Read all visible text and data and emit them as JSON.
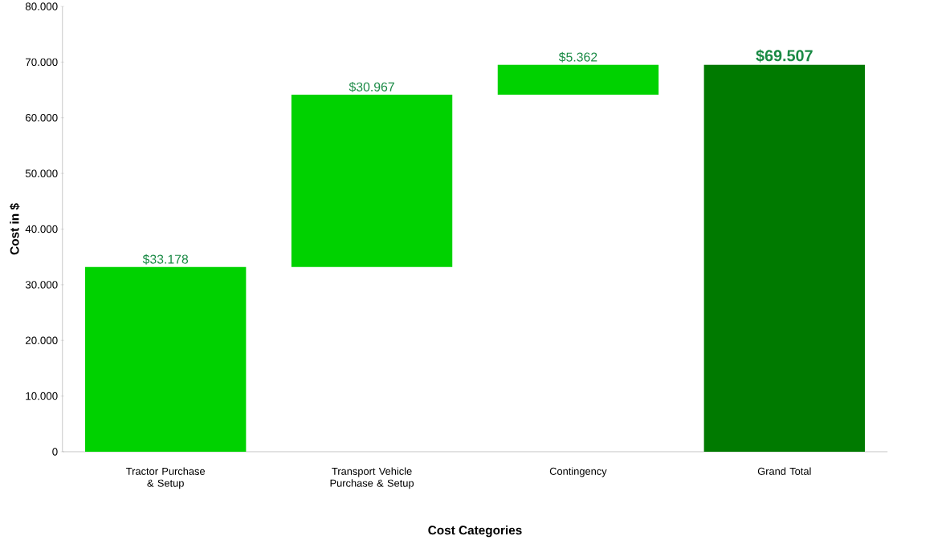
{
  "chart_data": {
    "type": "bar",
    "xlabel": "Cost Categories",
    "ylabel": "Cost in $",
    "categories": [
      "Tractor Purchase & Setup",
      "Transport Vehicle Purchase & Setup",
      "Contingency",
      "Grand Total"
    ],
    "values": [
      33178,
      30967,
      5362,
      69507
    ],
    "base": [
      0,
      33178,
      64145,
      0
    ],
    "colors": [
      "#00d200",
      "#00d200",
      "#00d200",
      "#007a00"
    ],
    "value_labels": [
      "$33.178",
      "$30.967",
      "$5.362",
      "$69.507"
    ],
    "ylim": [
      0,
      80000
    ],
    "yticks": [
      0,
      {
        "value": 10000,
        "label": "10.000"
      },
      {
        "value": 20000,
        "label": "20.000"
      },
      {
        "value": 30000,
        "label": "30.000"
      },
      {
        "value": 40000,
        "label": "40.000"
      },
      {
        "value": 50000,
        "label": "50.000"
      },
      {
        "value": 60000,
        "label": "60.000"
      },
      {
        "value": 70000,
        "label": "70.000"
      },
      {
        "value": 80000,
        "label": "80.000"
      }
    ],
    "grid": false
  }
}
